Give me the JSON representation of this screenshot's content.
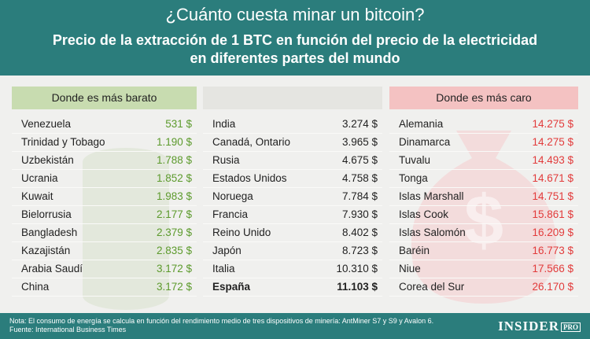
{
  "header": {
    "title": "¿Cuánto cuesta minar un bitcoin?",
    "subtitle_lines": [
      "Precio de la extracción de 1 BTC en función del precio de la electricidad",
      "en diferentes partes del mundo"
    ]
  },
  "columns": [
    {
      "heading": "Donde es más barato",
      "rows": [
        [
          "Venezuela",
          "531 $"
        ],
        [
          "Trinidad y Tobago",
          "1.190 $"
        ],
        [
          "Uzbekistán",
          "1.788 $"
        ],
        [
          "Ucrania",
          "1.852 $"
        ],
        [
          "Kuwait",
          "1.983 $"
        ],
        [
          "Bielorrusia",
          "2.177 $"
        ],
        [
          "Bangladesh",
          "2.379 $"
        ],
        [
          "Kazajistán",
          "2.835 $"
        ],
        [
          "Arabia Saudí",
          "3.172 $"
        ],
        [
          "China",
          "3.172 $"
        ]
      ]
    },
    {
      "rows": [
        [
          "India",
          "3.274 $"
        ],
        [
          "Canadá, Ontario",
          "3.965 $"
        ],
        [
          "Rusia",
          "4.675 $"
        ],
        [
          "Estados Unidos",
          "4.758 $"
        ],
        [
          "Noruega",
          "7.784 $"
        ],
        [
          "Francia",
          "7.930 $"
        ],
        [
          "Reino Unido",
          "8.402 $"
        ],
        [
          "Japón",
          "8.723 $"
        ],
        [
          "Italia",
          "10.310 $"
        ],
        [
          "España",
          "11.103 $"
        ]
      ]
    },
    {
      "heading": "Donde es más caro",
      "rows": [
        [
          "Alemania",
          "14.275 $"
        ],
        [
          "Dinamarca",
          "14.275 $"
        ],
        [
          "Tuvalu",
          "14.493 $"
        ],
        [
          "Tonga",
          "14.671 $"
        ],
        [
          "Islas Marshall",
          "14.751 $"
        ],
        [
          "Islas Cook",
          "15.861 $"
        ],
        [
          "Islas Salomón",
          "16.209 $"
        ],
        [
          "Baréin",
          "16.773 $"
        ],
        [
          "Niue",
          "17.566 $"
        ],
        [
          "Corea del Sur",
          "26.170 $"
        ]
      ]
    }
  ],
  "footer": {
    "notes": [
      "Nota: El consumo de energía se calcula en función del rendimiento medio de tres dispositivos de minería: AntMiner S7 y S9 y Avalon 6.",
      "Fuente: International Business Times"
    ],
    "logo": [
      "INSIDER",
      "PRO"
    ]
  }
}
